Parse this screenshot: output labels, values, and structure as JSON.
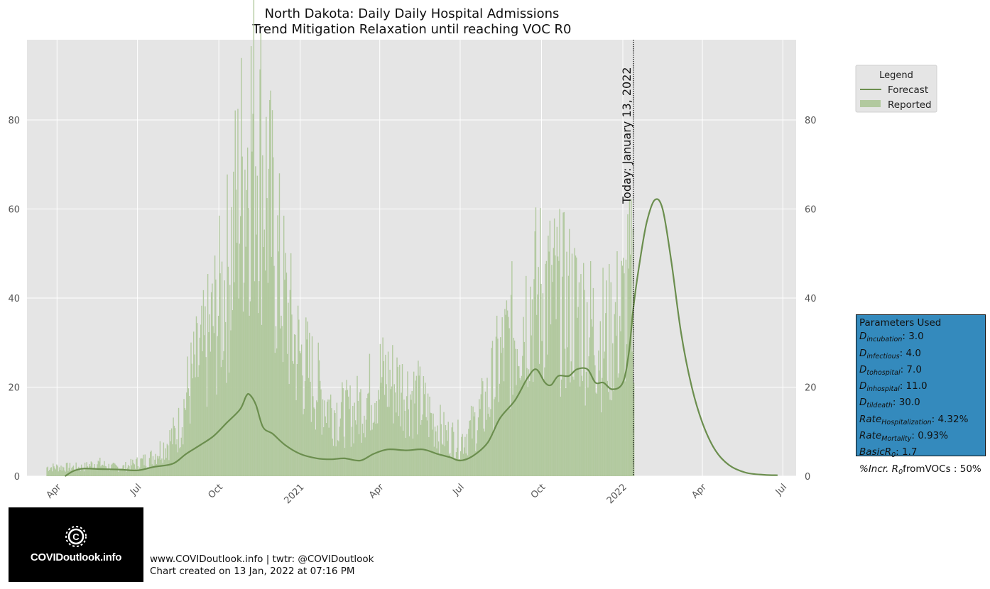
{
  "title": {
    "line1": "North Dakota: Daily Daily Hospital Admissions",
    "line2": "Trend Mitigation Relaxation until reaching VOC R0"
  },
  "today_label": "Today: January 13, 2022",
  "legend": {
    "title": "Legend",
    "forecast": "Forecast",
    "reported": "Reported"
  },
  "parameters": {
    "title": "Parameters Used",
    "items": [
      {
        "symbol": "D",
        "sub": "incubation",
        "value": ": 3.0"
      },
      {
        "symbol": "D",
        "sub": "infectious",
        "value": ": 4.0"
      },
      {
        "symbol": "D",
        "sub": "tohospital",
        "value": ": 7.0"
      },
      {
        "symbol": "D",
        "sub": "inhospital",
        "value": ": 11.0"
      },
      {
        "symbol": "D",
        "sub": "tildeath",
        "value": ": 30.0"
      },
      {
        "symbol": "Rate",
        "sub": "Hospitalization",
        "value": ": 4.32%"
      },
      {
        "symbol": "Rate",
        "sub": "Mortality",
        "value": ": 0.93%"
      },
      {
        "symbol": "BasicR",
        "sub": "0",
        "value": ": 1.7"
      },
      {
        "symbol": "%Incr. R",
        "sub": "0",
        "value": "fromVOCs : 50%"
      }
    ]
  },
  "logo": {
    "text": "COVIDoutlook.info"
  },
  "footer": {
    "line1": "www.COVIDoutlook.info | twtr: @COVIDoutlook",
    "line2": "Chart created on 13 Jan, 2022 at 07:16 PM"
  },
  "colors": {
    "plot_bg": "#e5e5e5",
    "grid": "#ffffff",
    "reported": "#b2c99f",
    "forecast": "#6b8e4e",
    "params_bg": "#348abd"
  },
  "chart_data": {
    "type": "line",
    "title": "North Dakota: Daily Daily Hospital Admissions\nTrend Mitigation Relaxation until reaching VOC R0",
    "x_unit": "date",
    "x_range": [
      "2020-02-27",
      "2022-07-16"
    ],
    "ylim": [
      0,
      98
    ],
    "y_ticks": [
      0,
      20,
      40,
      60,
      80
    ],
    "x_ticks": [
      {
        "date": "2020-04-01",
        "label": "Apr"
      },
      {
        "date": "2020-07-01",
        "label": "Jul"
      },
      {
        "date": "2020-10-01",
        "label": "Oct"
      },
      {
        "date": "2021-01-01",
        "label": "2021"
      },
      {
        "date": "2021-04-01",
        "label": "Apr"
      },
      {
        "date": "2021-07-01",
        "label": "Jul"
      },
      {
        "date": "2021-10-01",
        "label": "Oct"
      },
      {
        "date": "2022-01-01",
        "label": "2022"
      },
      {
        "date": "2022-04-01",
        "label": "Apr"
      },
      {
        "date": "2022-07-01",
        "label": "Jul"
      }
    ],
    "today": "2022-01-13",
    "grid": true,
    "legend_position": "outside upper right",
    "series": [
      {
        "name": "Reported",
        "style": "bar",
        "points": [
          [
            "2020-03-20",
            2
          ],
          [
            "2020-04-01",
            2
          ],
          [
            "2020-04-15",
            2
          ],
          [
            "2020-05-01",
            2
          ],
          [
            "2020-05-15",
            3
          ],
          [
            "2020-06-01",
            2
          ],
          [
            "2020-06-15",
            2
          ],
          [
            "2020-07-01",
            3
          ],
          [
            "2020-07-15",
            4
          ],
          [
            "2020-08-01",
            7
          ],
          [
            "2020-08-15",
            10
          ],
          [
            "2020-08-25",
            18
          ],
          [
            "2020-09-01",
            22
          ],
          [
            "2020-09-15",
            28
          ],
          [
            "2020-10-01",
            38
          ],
          [
            "2020-10-10",
            45
          ],
          [
            "2020-10-20",
            58
          ],
          [
            "2020-10-28",
            68
          ],
          [
            "2020-11-05",
            76
          ],
          [
            "2020-11-12",
            78
          ],
          [
            "2020-11-20",
            68
          ],
          [
            "2020-11-28",
            58
          ],
          [
            "2020-12-05",
            48
          ],
          [
            "2020-12-15",
            38
          ],
          [
            "2020-12-25",
            30
          ],
          [
            "2021-01-05",
            25
          ],
          [
            "2021-01-20",
            20
          ],
          [
            "2021-02-01",
            16
          ],
          [
            "2021-02-15",
            14
          ],
          [
            "2021-03-01",
            14
          ],
          [
            "2021-03-15",
            17
          ],
          [
            "2021-04-01",
            22
          ],
          [
            "2021-04-15",
            21
          ],
          [
            "2021-05-01",
            19
          ],
          [
            "2021-05-15",
            17
          ],
          [
            "2021-06-01",
            12
          ],
          [
            "2021-06-15",
            9
          ],
          [
            "2021-07-01",
            8
          ],
          [
            "2021-07-15",
            11
          ],
          [
            "2021-08-01",
            17
          ],
          [
            "2021-08-10",
            23
          ],
          [
            "2021-08-20",
            28
          ],
          [
            "2021-09-01",
            33
          ],
          [
            "2021-09-15",
            38
          ],
          [
            "2021-10-01",
            42
          ],
          [
            "2021-10-15",
            40
          ],
          [
            "2021-11-01",
            38
          ],
          [
            "2021-11-15",
            36
          ],
          [
            "2021-12-01",
            32
          ],
          [
            "2021-12-15",
            31
          ],
          [
            "2022-01-01",
            37
          ],
          [
            "2022-01-13",
            44
          ]
        ]
      },
      {
        "name": "Forecast",
        "style": "line",
        "points": [
          [
            "2020-04-10",
            0
          ],
          [
            "2020-04-20",
            1.2
          ],
          [
            "2020-05-01",
            1.7
          ],
          [
            "2020-05-20",
            1.6
          ],
          [
            "2020-06-10",
            1.5
          ],
          [
            "2020-07-01",
            1.3
          ],
          [
            "2020-07-20",
            2.1
          ],
          [
            "2020-08-10",
            2.8
          ],
          [
            "2020-08-25",
            5
          ],
          [
            "2020-09-10",
            7
          ],
          [
            "2020-09-25",
            9
          ],
          [
            "2020-10-10",
            12
          ],
          [
            "2020-10-25",
            15
          ],
          [
            "2020-11-01",
            18
          ],
          [
            "2020-11-05",
            18.3
          ],
          [
            "2020-11-12",
            16
          ],
          [
            "2020-11-20",
            11
          ],
          [
            "2020-12-01",
            9.5
          ],
          [
            "2020-12-15",
            7
          ],
          [
            "2021-01-01",
            5
          ],
          [
            "2021-01-20",
            4
          ],
          [
            "2021-02-05",
            3.8
          ],
          [
            "2021-02-20",
            4
          ],
          [
            "2021-03-10",
            3.5
          ],
          [
            "2021-03-25",
            5
          ],
          [
            "2021-04-10",
            6
          ],
          [
            "2021-05-01",
            5.8
          ],
          [
            "2021-05-20",
            6
          ],
          [
            "2021-06-05",
            5
          ],
          [
            "2021-06-20",
            4.2
          ],
          [
            "2021-07-01",
            3.5
          ],
          [
            "2021-07-15",
            4.5
          ],
          [
            "2021-08-01",
            7.5
          ],
          [
            "2021-08-15",
            13
          ],
          [
            "2021-09-01",
            17
          ],
          [
            "2021-09-15",
            22
          ],
          [
            "2021-09-25",
            24
          ],
          [
            "2021-10-05",
            21
          ],
          [
            "2021-10-12",
            20.5
          ],
          [
            "2021-10-20",
            22.5
          ],
          [
            "2021-11-01",
            22.5
          ],
          [
            "2021-11-10",
            24
          ],
          [
            "2021-11-22",
            24
          ],
          [
            "2021-12-01",
            21
          ],
          [
            "2021-12-10",
            21
          ],
          [
            "2021-12-20",
            19.5
          ],
          [
            "2022-01-01",
            21
          ],
          [
            "2022-01-08",
            28
          ],
          [
            "2022-01-13",
            38
          ],
          [
            "2022-01-20",
            48
          ],
          [
            "2022-01-28",
            57
          ],
          [
            "2022-02-06",
            62
          ],
          [
            "2022-02-15",
            60
          ],
          [
            "2022-02-25",
            48
          ],
          [
            "2022-03-08",
            32
          ],
          [
            "2022-03-20",
            20
          ],
          [
            "2022-04-01",
            12
          ],
          [
            "2022-04-15",
            6
          ],
          [
            "2022-05-01",
            2.5
          ],
          [
            "2022-05-20",
            0.8
          ],
          [
            "2022-06-10",
            0.3
          ],
          [
            "2022-06-25",
            0.2
          ]
        ]
      }
    ]
  }
}
